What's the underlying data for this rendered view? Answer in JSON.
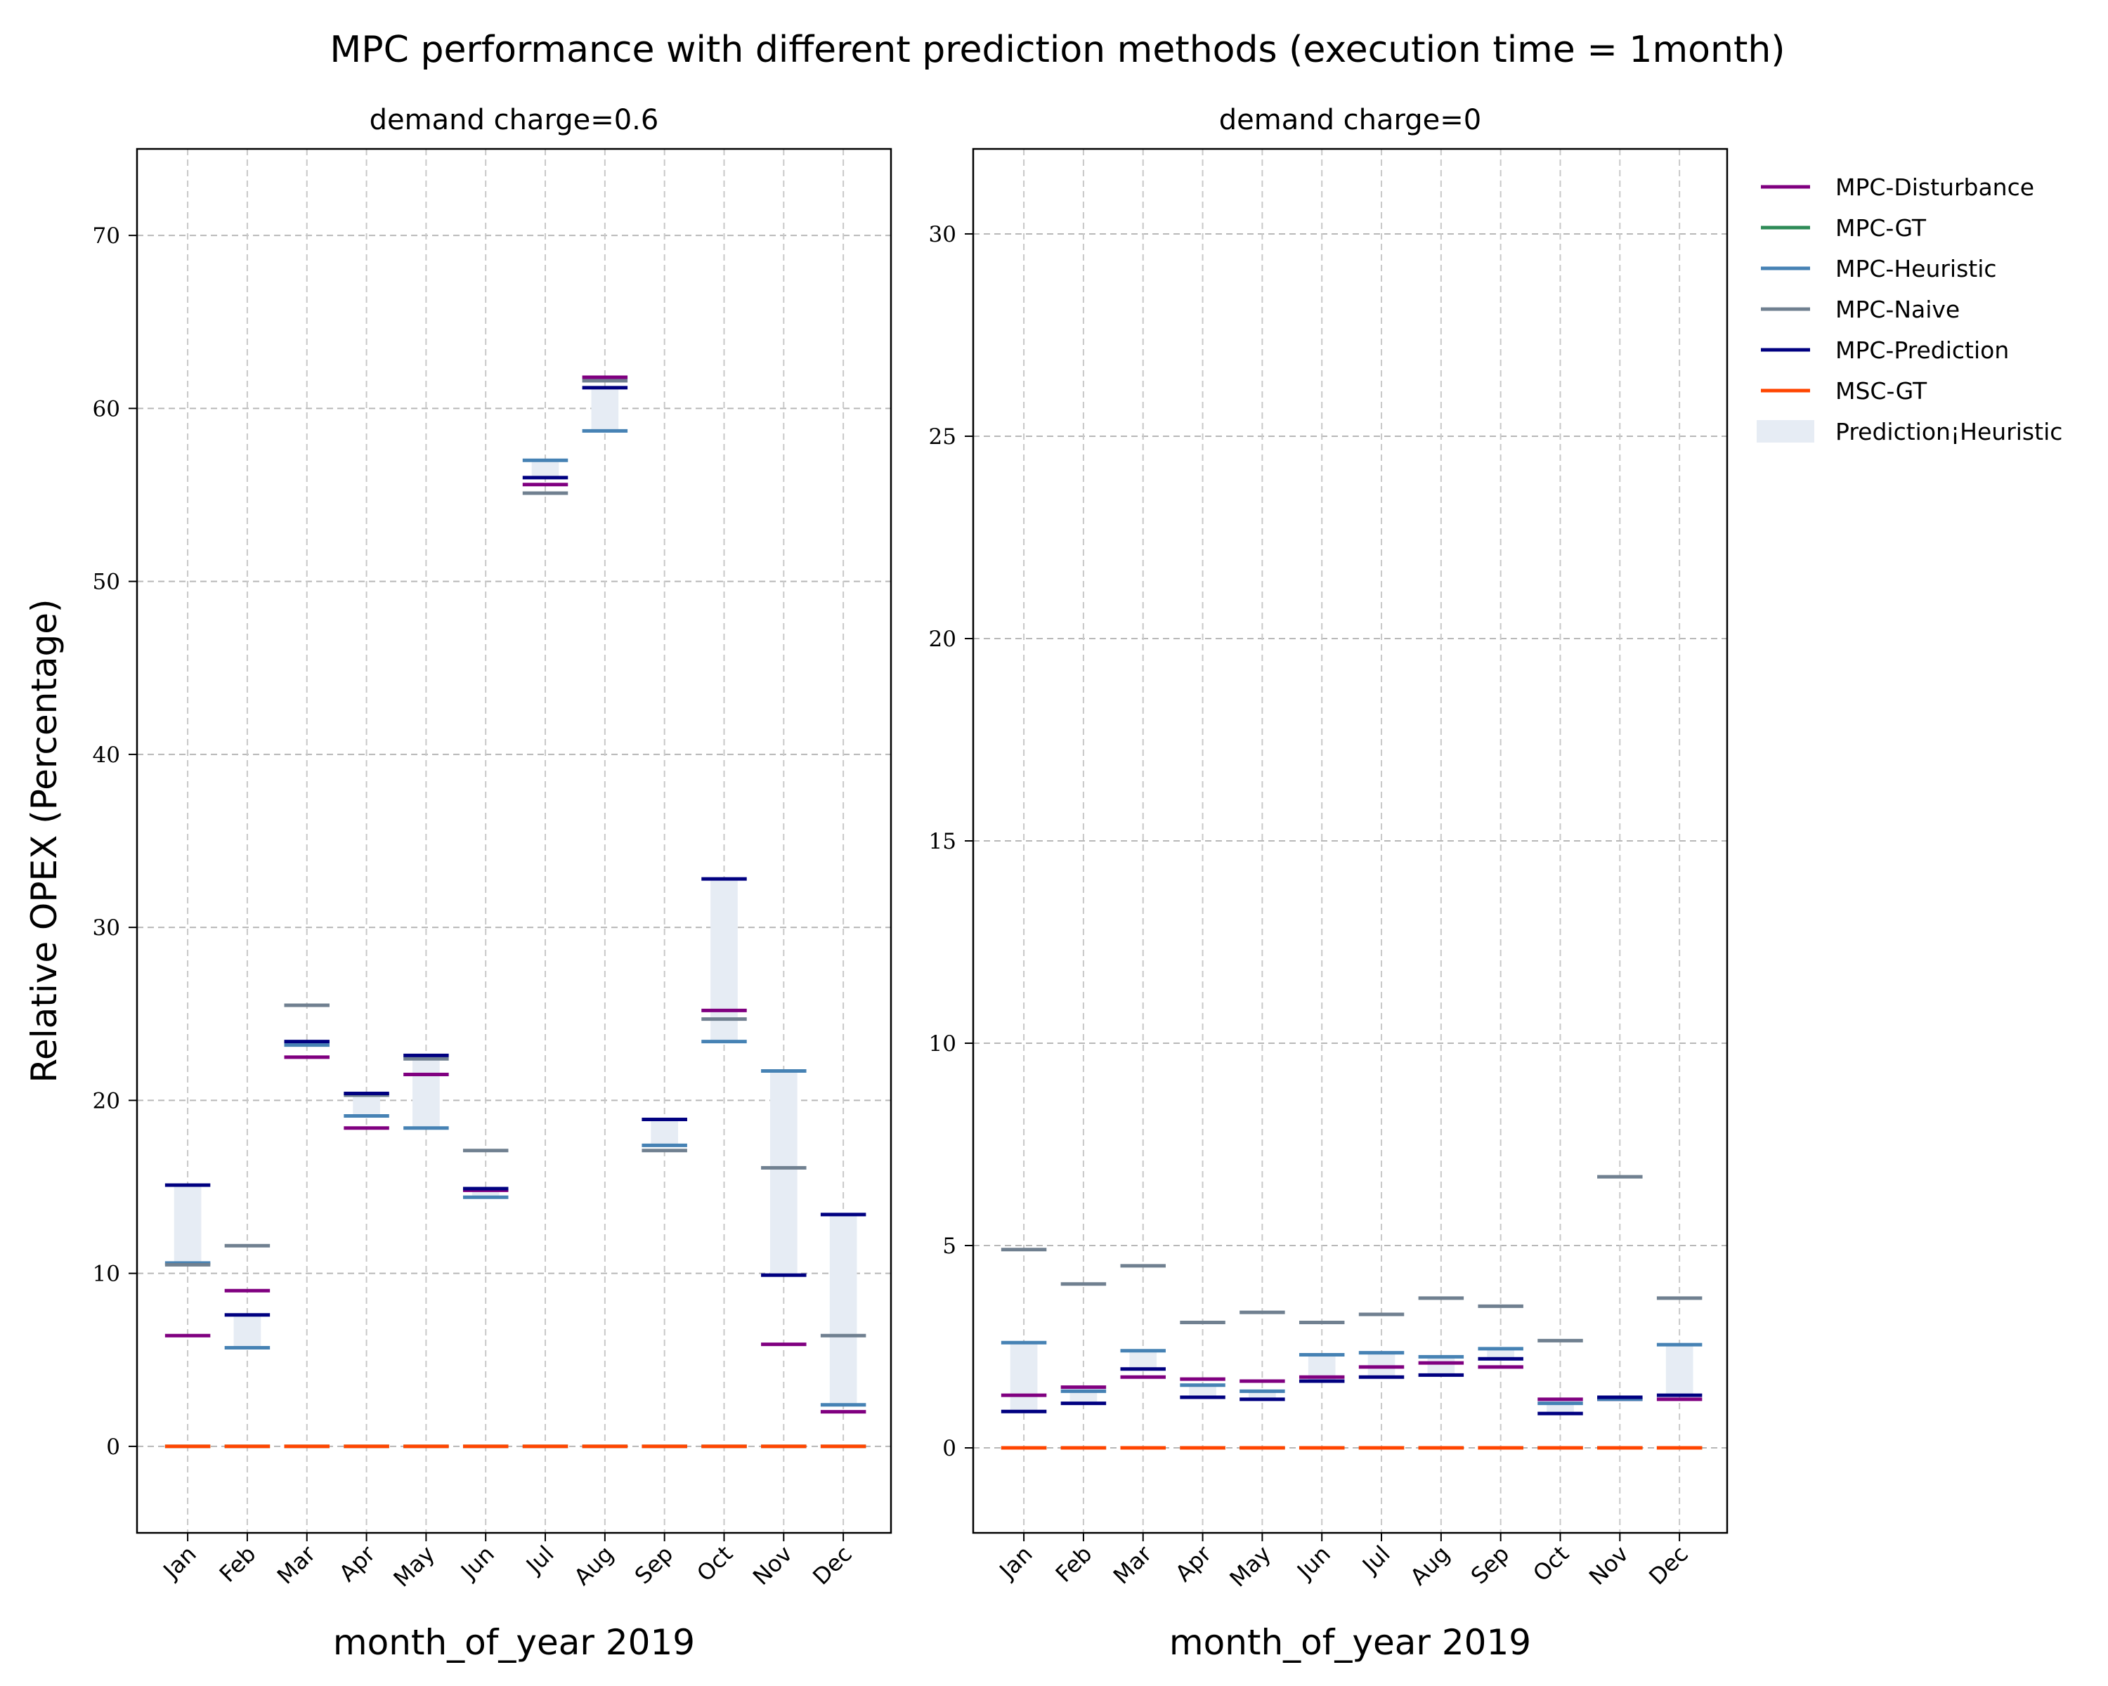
{
  "title": "MPC performance with different prediction methods (execution time = 1month)",
  "legend": {
    "placement": "right, outside plots",
    "items": [
      {
        "label": "MPC-Disturbance",
        "color": "#800080",
        "kind": "line"
      },
      {
        "label": "MPC-GT",
        "color": "#2e8b57",
        "kind": "line"
      },
      {
        "label": "MPC-Heuristic",
        "color": "#4682b4",
        "kind": "line"
      },
      {
        "label": "MPC-Naive",
        "color": "#708090",
        "kind": "line"
      },
      {
        "label": "MPC-Prediction",
        "color": "#000080",
        "kind": "line"
      },
      {
        "label": "MSC-GT",
        "color": "#ff4500",
        "kind": "line"
      },
      {
        "label": "Prediction¡Heuristic",
        "color": "#e6ecf4",
        "kind": "patch"
      }
    ]
  },
  "chart_data": [
    {
      "type": "bar",
      "title": "demand charge=0.6",
      "xlabel": "month_of_year 2019",
      "ylabel": "Relative OPEX (Percentage)",
      "ylim": [
        -5,
        75
      ],
      "yticks": [
        0,
        10,
        20,
        30,
        40,
        50,
        60,
        70
      ],
      "grid": true,
      "categories": [
        "Jan",
        "Feb",
        "Mar",
        "Apr",
        "May",
        "Jun",
        "Jul",
        "Aug",
        "Sep",
        "Oct",
        "Nov",
        "Dec"
      ],
      "series": [
        {
          "name": "MPC-Disturbance",
          "values": [
            6.4,
            9.0,
            22.5,
            18.4,
            21.5,
            14.8,
            55.6,
            61.8,
            18.9,
            25.2,
            5.9,
            2.0
          ]
        },
        {
          "name": "MPC-GT",
          "values": [
            0,
            0,
            0,
            0,
            0,
            0,
            0,
            0,
            0,
            0,
            0,
            0
          ]
        },
        {
          "name": "MPC-Heuristic",
          "values": [
            10.6,
            5.7,
            23.2,
            19.1,
            18.4,
            14.4,
            57.0,
            58.7,
            17.4,
            23.4,
            21.7,
            2.4
          ]
        },
        {
          "name": "MPC-Naive",
          "values": [
            10.5,
            11.6,
            25.5,
            20.3,
            22.4,
            17.1,
            55.1,
            61.6,
            17.1,
            24.7,
            16.1,
            6.4
          ]
        },
        {
          "name": "MPC-Prediction",
          "values": [
            15.1,
            7.6,
            23.4,
            20.4,
            22.6,
            14.9,
            56.0,
            61.2,
            18.9,
            32.8,
            9.9,
            13.4
          ]
        },
        {
          "name": "MSC-GT",
          "values": [
            0,
            0,
            0,
            0,
            0,
            0,
            0,
            0,
            0,
            0,
            0,
            0
          ]
        }
      ]
    },
    {
      "type": "bar",
      "title": "demand charge=0",
      "xlabel": "month_of_year 2019",
      "ylabel": "",
      "ylim": [
        -2.1,
        32.1
      ],
      "yticks": [
        0,
        5,
        10,
        15,
        20,
        25,
        30
      ],
      "grid": true,
      "categories": [
        "Jan",
        "Feb",
        "Mar",
        "Apr",
        "May",
        "Jun",
        "Jul",
        "Aug",
        "Sep",
        "Oct",
        "Nov",
        "Dec"
      ],
      "series": [
        {
          "name": "MPC-Disturbance",
          "values": [
            1.3,
            1.5,
            1.75,
            1.7,
            1.65,
            1.75,
            2.0,
            2.1,
            2.0,
            1.2,
            1.2,
            1.2
          ]
        },
        {
          "name": "MPC-GT",
          "values": [
            0,
            0,
            0,
            0,
            0,
            0,
            0,
            0,
            0,
            0,
            0,
            0
          ]
        },
        {
          "name": "MPC-Heuristic",
          "values": [
            2.6,
            1.4,
            2.4,
            1.55,
            1.4,
            2.3,
            2.35,
            2.25,
            2.45,
            1.1,
            1.2,
            2.55
          ]
        },
        {
          "name": "MPC-Naive",
          "values": [
            4.9,
            4.05,
            4.5,
            3.1,
            3.35,
            3.1,
            3.3,
            3.7,
            3.5,
            2.65,
            6.7,
            3.7
          ]
        },
        {
          "name": "MPC-Prediction",
          "values": [
            0.9,
            1.1,
            1.95,
            1.25,
            1.2,
            1.65,
            1.75,
            1.8,
            2.2,
            0.85,
            1.25,
            1.3
          ]
        },
        {
          "name": "MSC-GT",
          "values": [
            0,
            0,
            0,
            0,
            0,
            0,
            0,
            0,
            0,
            0,
            0,
            0
          ]
        }
      ]
    }
  ]
}
